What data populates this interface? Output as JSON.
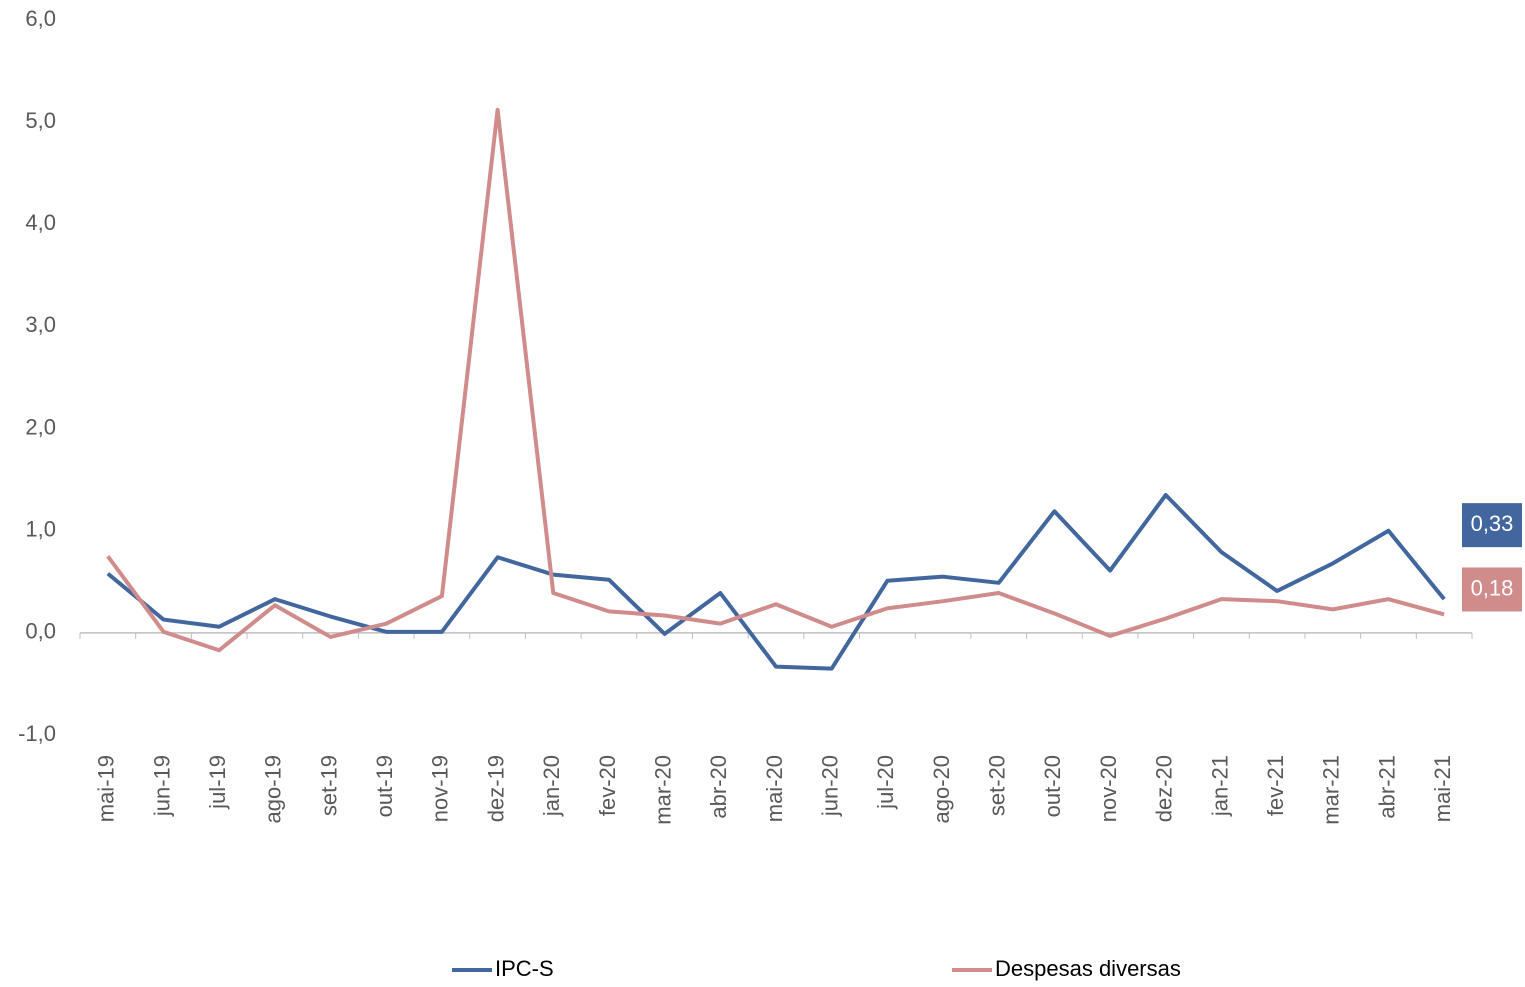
{
  "chart_data": {
    "type": "line",
    "categories": [
      "mai-19",
      "jun-19",
      "jul-19",
      "ago-19",
      "set-19",
      "out-19",
      "nov-19",
      "dez-19",
      "jan-20",
      "fev-20",
      "mar-20",
      "abr-20",
      "mai-20",
      "jun-20",
      "jul-20",
      "ago-20",
      "set-20",
      "out-20",
      "nov-20",
      "dez-20",
      "jan-21",
      "fev-21",
      "mar-21",
      "abr-21",
      "mai-21"
    ],
    "series": [
      {
        "name": "IPC-S",
        "color": "#41679e",
        "values": [
          0.58,
          0.13,
          0.06,
          0.33,
          0.16,
          0.01,
          0.01,
          0.74,
          0.57,
          0.52,
          -0.01,
          0.39,
          -0.33,
          -0.35,
          0.51,
          0.55,
          0.49,
          1.19,
          0.61,
          1.35,
          0.79,
          0.41,
          0.68,
          1.0,
          0.33
        ],
        "value_labels": [
          null,
          null,
          null,
          null,
          null,
          null,
          null,
          null,
          null,
          null,
          null,
          null,
          null,
          null,
          null,
          null,
          null,
          null,
          null,
          null,
          null,
          null,
          null,
          null,
          "0,33"
        ]
      },
      {
        "name": "Despesas diversas",
        "color": "#d08b8b",
        "values": [
          0.75,
          0.01,
          -0.17,
          0.27,
          -0.04,
          0.09,
          0.36,
          5.12,
          0.39,
          0.21,
          0.17,
          0.09,
          0.28,
          0.06,
          0.24,
          0.31,
          0.39,
          0.19,
          -0.03,
          0.14,
          0.33,
          0.31,
          0.23,
          0.33,
          0.18
        ],
        "value_labels": [
          null,
          null,
          null,
          null,
          null,
          null,
          null,
          null,
          null,
          null,
          null,
          null,
          null,
          null,
          null,
          null,
          null,
          null,
          null,
          null,
          null,
          null,
          null,
          null,
          "0,18"
        ]
      }
    ],
    "ylim": [
      -1,
      6
    ],
    "yticks": [
      {
        "value": -1,
        "label": "-1,0"
      },
      {
        "value": 0,
        "label": "0,0"
      },
      {
        "value": 1,
        "label": "1,0"
      },
      {
        "value": 2,
        "label": "2,0"
      },
      {
        "value": 3,
        "label": "3,0"
      },
      {
        "value": 4,
        "label": "4,0"
      },
      {
        "value": 5,
        "label": "5,0"
      },
      {
        "value": 6,
        "label": "6,0"
      }
    ],
    "grid": false,
    "legend": "bottom"
  }
}
